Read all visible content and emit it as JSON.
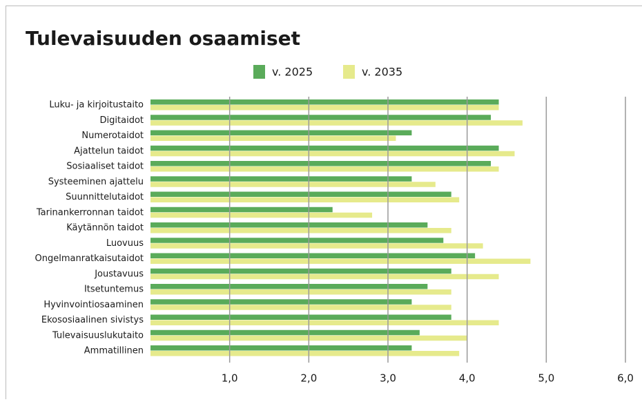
{
  "chart_data": {
    "type": "bar",
    "orientation": "horizontal",
    "title": "Tulevaisuuden osaamiset",
    "categories": [
      "Luku- ja kirjoitustaito",
      "Digitaidot",
      "Numerotaidot",
      "Ajattelun taidot",
      "Sosiaaliset taidot",
      "Systeeminen ajattelu",
      "Suunnittelutaidot",
      "Tarinankerronnan taidot",
      "Käytännön taidot",
      "Luovuus",
      "Ongelmanratkaisutaidot",
      "Joustavuus",
      "Itsetuntemus",
      "Hyvinvointiosaaminen",
      "Ekososiaalinen sivistys",
      "Tulevaisuuslukutaito",
      "Ammatillinen"
    ],
    "series": [
      {
        "name": "v. 2025",
        "color": "#5aab5a",
        "values": [
          4.4,
          4.3,
          3.3,
          4.4,
          4.3,
          3.3,
          3.8,
          2.3,
          3.5,
          3.7,
          4.1,
          3.8,
          3.5,
          3.3,
          3.8,
          3.4,
          3.3
        ]
      },
      {
        "name": "v. 2035",
        "color": "#e6ea8c",
        "values": [
          4.4,
          4.7,
          3.1,
          4.6,
          4.4,
          3.6,
          3.9,
          2.8,
          3.8,
          4.2,
          4.8,
          4.4,
          3.8,
          3.8,
          4.4,
          4.0,
          3.9
        ]
      }
    ],
    "xlim": [
      0,
      6
    ],
    "xticks": [
      {
        "value": 1,
        "label": "1,0"
      },
      {
        "value": 2,
        "label": "2,0"
      },
      {
        "value": 3,
        "label": "3,0"
      },
      {
        "value": 4,
        "label": "4,0"
      },
      {
        "value": 5,
        "label": "5,0"
      },
      {
        "value": 6,
        "label": "6,0"
      }
    ],
    "grid": true
  }
}
